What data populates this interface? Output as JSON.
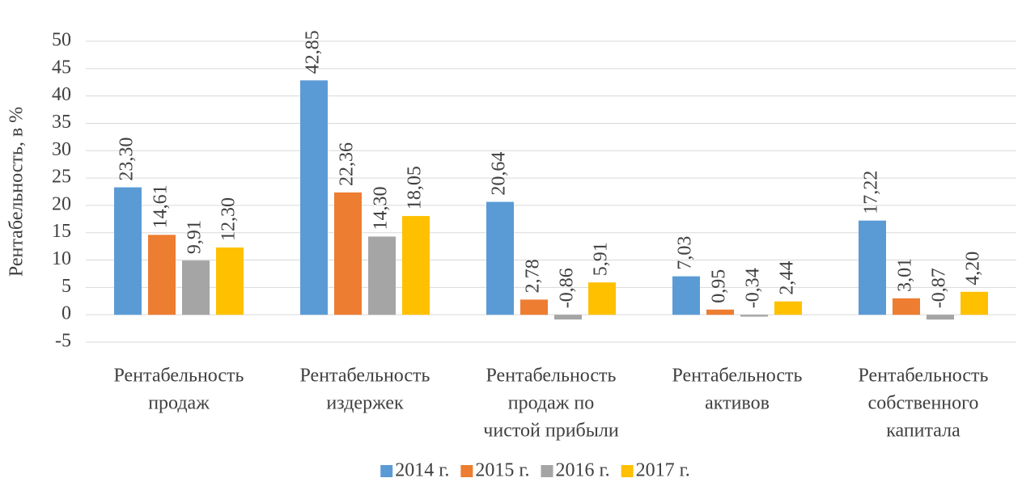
{
  "chart_data": {
    "type": "bar",
    "y_label": "Рентабельность, в %",
    "categories": [
      [
        "Рентабельность",
        "продаж"
      ],
      [
        "Рентабельность",
        "издержек"
      ],
      [
        "Рентабельность",
        "продаж по",
        "чистой прибыли"
      ],
      [
        "Рентабельность",
        "активов"
      ],
      [
        "Рентабельность",
        "собственного",
        "капитала"
      ]
    ],
    "series": [
      {
        "name": "2014 г.",
        "color": "#5b9bd5",
        "values": [
          23.3,
          42.85,
          20.64,
          7.03,
          17.22
        ],
        "value_labels": [
          "23,30",
          "42,85",
          "20,64",
          "7,03",
          "17,22"
        ]
      },
      {
        "name": "2015 г.",
        "color": "#ed7d31",
        "values": [
          14.61,
          22.36,
          2.78,
          0.95,
          3.01
        ],
        "value_labels": [
          "14,61",
          "22,36",
          "2,78",
          "0,95",
          "3,01"
        ]
      },
      {
        "name": "2016 г.",
        "color": "#a5a5a5",
        "values": [
          9.91,
          14.3,
          -0.86,
          -0.34,
          -0.87
        ],
        "value_labels": [
          "9,91",
          "14,30",
          "-0,86",
          "-0,34",
          "-0,87"
        ]
      },
      {
        "name": "2017 г.",
        "color": "#ffc000",
        "values": [
          12.3,
          18.05,
          5.91,
          2.44,
          4.2
        ],
        "value_labels": [
          "12,30",
          "18,05",
          "5,91",
          "2,44",
          "4,20"
        ]
      }
    ],
    "ylim": [
      -5,
      50
    ],
    "yticks": [
      -5,
      0,
      5,
      10,
      15,
      20,
      25,
      30,
      35,
      40,
      45,
      50
    ],
    "grid": true,
    "legend": "bottom"
  }
}
